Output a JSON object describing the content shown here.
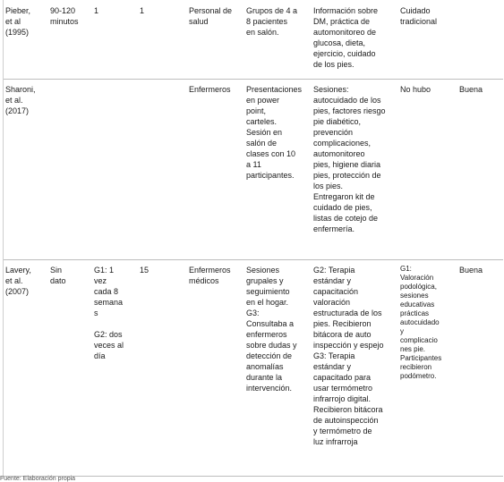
{
  "rows": [
    {
      "author": "Pieber,\net      al\n(1995)",
      "duration": "90-120\nminutos",
      "sessions": "1",
      "followup": "1",
      "personnel": "Personal de\nsalud",
      "format": "Grupos de 4 a\n8   pacientes\nen salón.",
      "content": "Información sobre\nDM,   práctica  de\nautomonitoreo   de\nglucosa,           dieta,\nejercicio,    cuidado\nde los pies.",
      "control": "Cuidado\ntradicional",
      "quality": ""
    },
    {
      "author": "Sharoni,\net        al.\n(2017)",
      "duration": "",
      "sessions": "",
      "followup": "",
      "personnel": "Enfermeros",
      "format": "Presentaciones\nen        power\npoint,\ncarteles.\nSesión         en\nsalón           de\nclases con 10\na                11\nparticipantes.",
      "content": "Sesiones:\nautocuidado de los\npies, factores riesgo\npie             diabético,\nprevención\ncomplicaciones,\nautomonitoreo\npies, higiene diaria\npies, protección de\nlos pies.\nEntregaron   kit   de\ncuidado    de    pies,\nlistas de cotejo de\nenfermería.",
      "control": "No hubo",
      "quality": "Buena"
    },
    {
      "author": "Lavery,\net        al.\n(2007)",
      "duration": "Sin\ndato",
      "sessions": "G1:     1\nvez\ncada   8\nsemana\ns\n\nG2:   dos\nveces al\ndía",
      "followup": "15",
      "personnel": "Enfermeros\nmédicos",
      "format": "Sesiones\ngrupales      y\nseguimiento\nen el hogar.\nG3:\nConsultaba a\nenfermeros\nsobre dudas y\ndetección   de\nanomalías\ndurante       la\nintervención.",
      "content": "G2:              Terapia\nestándar             y\ncapacitación\nvaloración\nestructurada de los\npies.     Recibieron\nbitácora   de    auto\ninspección y espejo\nG3:              Terapia\nestándar             y\ncapacitado      para\nusar      termómetro\ninfrarrojo     digital.\nRecibieron bitácora\nde   autoinspección\ny    termómetro   de\nluz infrarroja",
      "control": "G1:\nValoración\npodológica,\nsesiones\neducativas\nprácticas\nautocuidado\ny\ncomplicacio\nnes      pie.\nParticipantes\nrecibieron\npodómetro.",
      "quality": "Buena"
    }
  ],
  "footer": "Fuente: Elaboración propia"
}
